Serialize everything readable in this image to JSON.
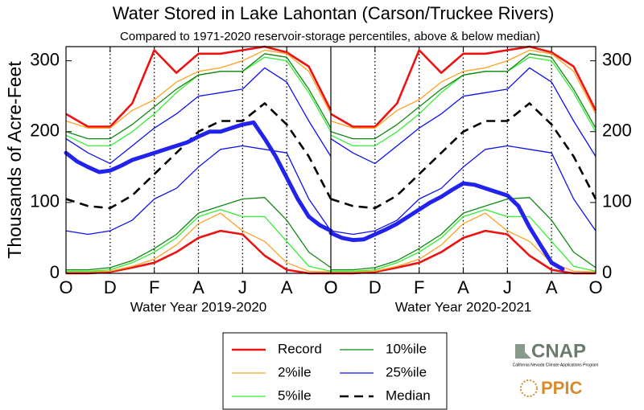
{
  "chart_data": {
    "type": "line",
    "title": "Water Stored in Lake Lahontan (Carson/Truckee Rivers)",
    "subtitle": "Compared to 1971-2020 reservoir-storage percentiles, above & below median)",
    "ylabel": "Thousands of Acre-Feet",
    "ylim": [
      0,
      320
    ],
    "yticks": [
      0,
      100,
      200,
      300
    ],
    "xlim": [
      0,
      12
    ],
    "x": [
      0,
      1,
      2,
      3,
      4,
      5,
      6,
      7,
      8,
      9,
      10,
      11,
      12
    ],
    "xticks": [
      {
        "value": 0,
        "label": "O"
      },
      {
        "value": 2,
        "label": "D"
      },
      {
        "value": 4,
        "label": "F"
      },
      {
        "value": 6,
        "label": "A"
      },
      {
        "value": 8,
        "label": "J"
      },
      {
        "value": 10,
        "label": "A"
      },
      {
        "value": 12,
        "label": "O"
      }
    ],
    "series": [
      {
        "name": "Record",
        "color": "#ee1111",
        "values": [
          225,
          207,
          207,
          240,
          315,
          283,
          310,
          310,
          315,
          320,
          312,
          292,
          230
        ],
        "low": [
          0,
          0,
          2,
          8,
          15,
          30,
          50,
          60,
          55,
          25,
          5,
          0,
          0
        ]
      },
      {
        "name": "2%ile",
        "color": "#ffa020",
        "values": [
          215,
          205,
          205,
          230,
          245,
          270,
          285,
          290,
          300,
          315,
          310,
          285,
          225
        ],
        "low": [
          2,
          2,
          3,
          10,
          20,
          40,
          70,
          85,
          60,
          45,
          15,
          3,
          2
        ]
      },
      {
        "name": "5%ile",
        "color": "#33ee33",
        "values": [
          195,
          180,
          180,
          200,
          225,
          255,
          280,
          285,
          285,
          305,
          300,
          255,
          200
        ],
        "low": [
          3,
          3,
          5,
          15,
          30,
          50,
          80,
          90,
          80,
          80,
          45,
          10,
          3
        ]
      },
      {
        "name": "10%ile",
        "color": "#118811",
        "values": [
          200,
          190,
          190,
          210,
          235,
          260,
          280,
          285,
          285,
          310,
          305,
          260,
          205
        ],
        "low": [
          5,
          5,
          8,
          18,
          35,
          55,
          85,
          95,
          105,
          107,
          75,
          30,
          8
        ]
      },
      {
        "name": "25%ile",
        "color": "#1111ee",
        "values": [
          190,
          170,
          155,
          180,
          205,
          225,
          250,
          255,
          260,
          290,
          270,
          215,
          165
        ],
        "low": [
          60,
          55,
          60,
          75,
          105,
          120,
          150,
          175,
          180,
          175,
          170,
          105,
          60
        ]
      },
      {
        "name": "Median",
        "color": "#000000",
        "values": [
          105,
          95,
          92,
          110,
          140,
          170,
          200,
          215,
          215,
          240,
          210,
          165,
          105
        ]
      }
    ],
    "storage_color": "#2222ee",
    "storage_x": [
      0,
      0.5,
      1,
      1.5,
      2,
      2.5,
      3,
      3.5,
      4,
      4.5,
      5,
      5.5,
      6,
      6.5,
      7,
      7.5,
      8,
      8.5,
      9,
      9.5,
      10,
      10.5,
      11,
      11.5,
      12
    ],
    "panels": [
      {
        "xlabel": "Water Year 2019-2020",
        "storage": [
          170,
          158,
          150,
          143,
          145,
          152,
          160,
          165,
          170,
          175,
          180,
          185,
          193,
          200,
          200,
          205,
          210,
          213,
          190,
          165,
          135,
          105,
          80,
          68,
          60
        ]
      },
      {
        "xlabel": "Water Year 2020-2021",
        "storage": [
          57,
          50,
          47,
          48,
          55,
          62,
          70,
          80,
          90,
          100,
          108,
          118,
          127,
          125,
          120,
          115,
          110,
          95,
          65,
          40,
          15,
          6,
          null,
          null,
          null
        ]
      }
    ]
  },
  "logos": {
    "cnap": "CNAP",
    "cnap_sub": "California Nevada Climate Applications Program",
    "ppic": "PPIC"
  }
}
